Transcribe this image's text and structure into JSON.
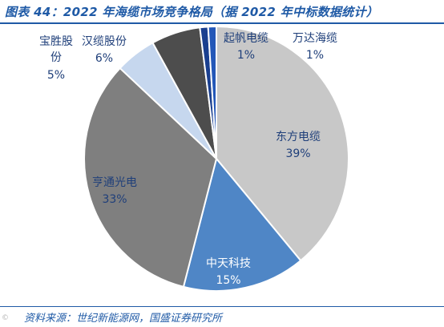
{
  "title": "图表 44：2022 年海缆市场竞争格局（据 2022 年中标数据统计）",
  "source": "资料来源：世纪新能源网，国盛证券研究所",
  "watermark": "©",
  "chart_data": {
    "type": "pie",
    "title": "图表 44：2022 年海缆市场竞争格局（据 2022 年中标数据统计）",
    "slices": [
      {
        "name": "东方电缆",
        "value": 39,
        "label": "39%",
        "color": "#c8c8c8"
      },
      {
        "name": "中天科技",
        "value": 15,
        "label": "15%",
        "color": "#4f86c6"
      },
      {
        "name": "亨通光电",
        "value": 33,
        "label": "33%",
        "color": "#7f7f7f"
      },
      {
        "name": "宝胜股份",
        "value": 5,
        "label": "5%",
        "color": "#c6d7ee"
      },
      {
        "name": "汉缆股份",
        "value": 6,
        "label": "6%",
        "color": "#4d4d4d"
      },
      {
        "name": "起帆电缆",
        "value": 1,
        "label": "1%",
        "color": "#1a3f8f"
      },
      {
        "name": "万达海缆",
        "value": 1,
        "label": "1%",
        "color": "#2357b8"
      }
    ],
    "label_colors": {
      "东方电缆": "#1f3f7a",
      "中天科技": "#ffffff",
      "亨通光电": "#1f3f7a",
      "宝胜股份": "#1f3f7a",
      "汉缆股份": "#1f3f7a",
      "起帆电缆": "#1f3f7a",
      "万达海缆": "#1f3f7a"
    }
  }
}
